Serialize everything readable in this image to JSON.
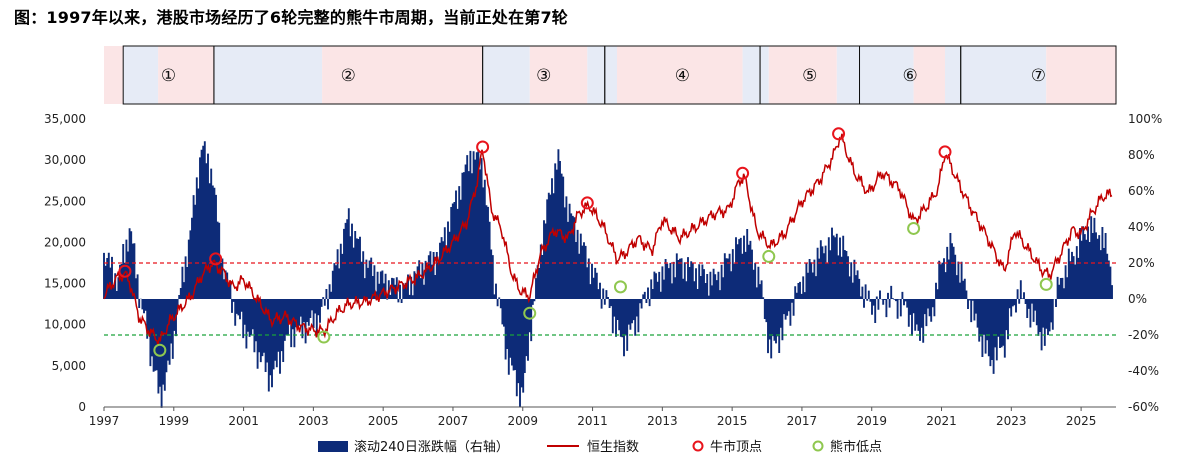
{
  "title": "图：1997年以来，港股市场经历了6轮完整的熊牛市周期，当前正处在第7轮",
  "colors": {
    "bar": "#0d2b78",
    "line": "#c00000",
    "bull_marker": "#e8141c",
    "bear_marker": "#8fc74f",
    "bull_band": "#fbe5e6",
    "bear_band": "#e6ebf6",
    "ref_red": "#e8141c",
    "ref_green": "#1aa23a"
  },
  "chart_data": {
    "type": "combo",
    "title": "",
    "xlim": [
      1997.0,
      2026.0
    ],
    "x_ticks": [
      "1997",
      "1999",
      "2001",
      "2003",
      "2005",
      "2007",
      "2009",
      "2011",
      "2013",
      "2015",
      "2017",
      "2019",
      "2021",
      "2023",
      "2025"
    ],
    "left_axis": {
      "label": "",
      "ylim": [
        0,
        35000
      ],
      "ticks": [
        "0",
        "5,000",
        "10,000",
        "15,000",
        "20,000",
        "25,000",
        "30,000",
        "35,000"
      ]
    },
    "right_axis": {
      "label": "",
      "ylim": [
        -60,
        100
      ],
      "ticks": [
        "-60%",
        "-40%",
        "-20%",
        "0%",
        "20%",
        "40%",
        "60%",
        "80%",
        "100%"
      ]
    },
    "phases": [
      {
        "label": "①",
        "start": 1997.55,
        "end": 2000.15
      },
      {
        "label": "②",
        "start": 2000.15,
        "end": 2007.85
      },
      {
        "label": "③",
        "start": 2007.85,
        "end": 2011.35
      },
      {
        "label": "④",
        "start": 2011.35,
        "end": 2015.8
      },
      {
        "label": "⑤",
        "start": 2015.8,
        "end": 2018.65
      },
      {
        "label": "⑥",
        "start": 2018.65,
        "end": 2021.55
      },
      {
        "label": "⑦",
        "start": 2021.55,
        "end": 2026.0
      }
    ],
    "bands": [
      {
        "kind": "bull",
        "start": 1997.0,
        "end": 1997.55
      },
      {
        "kind": "bear",
        "start": 1997.55,
        "end": 1998.55
      },
      {
        "kind": "bull",
        "start": 1998.55,
        "end": 2000.15
      },
      {
        "kind": "bear",
        "start": 2000.15,
        "end": 2003.25
      },
      {
        "kind": "bull",
        "start": 2003.25,
        "end": 2007.85
      },
      {
        "kind": "bear",
        "start": 2007.85,
        "end": 2009.2
      },
      {
        "kind": "bull",
        "start": 2009.2,
        "end": 2010.85
      },
      {
        "kind": "bear",
        "start": 2010.85,
        "end": 2011.7
      },
      {
        "kind": "bull",
        "start": 2011.7,
        "end": 2015.3
      },
      {
        "kind": "bear",
        "start": 2015.3,
        "end": 2016.05
      },
      {
        "kind": "bull",
        "start": 2016.05,
        "end": 2018.0
      },
      {
        "kind": "bear",
        "start": 2018.0,
        "end": 2020.2
      },
      {
        "kind": "bull",
        "start": 2020.2,
        "end": 2021.1
      },
      {
        "kind": "bear",
        "start": 2021.1,
        "end": 2024.0
      },
      {
        "kind": "bull",
        "start": 2024.0,
        "end": 2026.0
      }
    ],
    "reference_lines": [
      {
        "axis": "right",
        "value": 20,
        "color": "red"
      },
      {
        "axis": "right",
        "value": -20,
        "color": "green"
      }
    ],
    "series": [
      {
        "name": "滚动240日涨跌幅（右轴）",
        "type": "area",
        "axis": "right",
        "x": [
          1997.0,
          1997.4,
          1997.75,
          1998.0,
          1998.3,
          1998.6,
          1998.9,
          1999.2,
          1999.5,
          1999.8,
          2000.1,
          2000.4,
          2000.8,
          2001.3,
          2001.8,
          2002.3,
          2002.8,
          2003.2,
          2003.6,
          2004.0,
          2004.5,
          2005.0,
          2005.6,
          2006.0,
          2006.6,
          2007.0,
          2007.5,
          2007.85,
          2008.2,
          2008.6,
          2009.0,
          2009.2,
          2009.6,
          2010.0,
          2010.3,
          2010.7,
          2011.0,
          2011.5,
          2011.85,
          2012.2,
          2012.6,
          2013.0,
          2013.5,
          2014.0,
          2014.5,
          2015.0,
          2015.4,
          2015.8,
          2016.1,
          2016.5,
          2017.0,
          2017.5,
          2018.0,
          2018.5,
          2019.0,
          2019.5,
          2020.0,
          2020.3,
          2020.7,
          2021.0,
          2021.3,
          2021.7,
          2022.0,
          2022.4,
          2022.8,
          2023.2,
          2023.6,
          2024.0,
          2024.4,
          2024.8,
          2025.2,
          2025.6,
          2025.9
        ],
        "values": [
          25,
          10,
          40,
          5,
          -25,
          -55,
          -35,
          5,
          40,
          85,
          70,
          20,
          -10,
          -25,
          -45,
          -20,
          -15,
          -10,
          15,
          45,
          20,
          10,
          5,
          15,
          25,
          50,
          80,
          75,
          10,
          -35,
          -55,
          -20,
          40,
          80,
          50,
          30,
          15,
          -5,
          -25,
          -15,
          5,
          15,
          20,
          15,
          10,
          25,
          35,
          10,
          -30,
          -15,
          10,
          25,
          35,
          15,
          -5,
          0,
          -5,
          -20,
          -10,
          20,
          30,
          5,
          -15,
          -35,
          -25,
          5,
          -10,
          -25,
          10,
          25,
          40,
          35,
          15
        ]
      },
      {
        "name": "恒生指数",
        "type": "line",
        "axis": "left",
        "x": [
          1997.0,
          1997.2,
          1997.4,
          1997.6,
          1997.75,
          1998.0,
          1998.3,
          1998.6,
          1998.9,
          1999.2,
          1999.5,
          1999.8,
          2000.1,
          2000.4,
          2000.7,
          2001.0,
          2001.4,
          2001.8,
          2002.2,
          2002.6,
          2003.0,
          2003.3,
          2003.7,
          2004.0,
          2004.5,
          2005.0,
          2005.5,
          2006.0,
          2006.5,
          2007.0,
          2007.4,
          2007.7,
          2007.85,
          2008.1,
          2008.4,
          2008.7,
          2008.95,
          2009.2,
          2009.5,
          2009.9,
          2010.3,
          2010.6,
          2010.9,
          2011.3,
          2011.7,
          2011.9,
          2012.3,
          2012.7,
          2013.0,
          2013.5,
          2014.0,
          2014.5,
          2014.9,
          2015.2,
          2015.35,
          2015.7,
          2016.1,
          2016.5,
          2017.0,
          2017.5,
          2017.9,
          2018.1,
          2018.5,
          2018.9,
          2019.3,
          2019.8,
          2020.2,
          2020.6,
          2020.9,
          2021.1,
          2021.4,
          2021.8,
          2022.2,
          2022.5,
          2022.8,
          2023.1,
          2023.5,
          2023.9,
          2024.1,
          2024.4,
          2024.75,
          2025.0,
          2025.3,
          2025.6,
          2025.9
        ],
        "values": [
          13500,
          14800,
          15800,
          16200,
          15000,
          11000,
          9200,
          8000,
          10500,
          12000,
          13500,
          16000,
          17500,
          16500,
          14500,
          15500,
          13000,
          10500,
          11000,
          9800,
          9300,
          9200,
          11500,
          12500,
          12800,
          13800,
          14800,
          15800,
          17500,
          20000,
          22500,
          27500,
          31500,
          24000,
          21500,
          16000,
          14000,
          13500,
          18500,
          21500,
          20500,
          23500,
          24500,
          22000,
          18000,
          18500,
          20500,
          19000,
          22800,
          20500,
          22000,
          23500,
          24000,
          27500,
          28000,
          21500,
          19500,
          21000,
          25000,
          27500,
          30500,
          33000,
          28500,
          26000,
          28500,
          26500,
          22500,
          24500,
          26500,
          31000,
          28000,
          24500,
          21500,
          19000,
          16500,
          21500,
          19000,
          16500,
          16000,
          18500,
          21500,
          21000,
          23500,
          25500,
          26000
        ]
      }
    ],
    "bull_tops": [
      {
        "x": 1997.6,
        "y": 16500
      },
      {
        "x": 2000.2,
        "y": 18000
      },
      {
        "x": 2007.85,
        "y": 31600
      },
      {
        "x": 2010.85,
        "y": 24800
      },
      {
        "x": 2015.3,
        "y": 28400
      },
      {
        "x": 2018.05,
        "y": 33200
      },
      {
        "x": 2021.1,
        "y": 31000
      }
    ],
    "bear_bottoms": [
      {
        "x": 1998.6,
        "y": 6900
      },
      {
        "x": 2003.3,
        "y": 8500
      },
      {
        "x": 2009.2,
        "y": 11400
      },
      {
        "x": 2011.8,
        "y": 14600
      },
      {
        "x": 2016.05,
        "y": 18300
      },
      {
        "x": 2020.2,
        "y": 21700
      },
      {
        "x": 2024.0,
        "y": 14900
      }
    ],
    "legend": {
      "position": "bottom",
      "items": [
        {
          "label": "滚动240日涨跌幅（右轴）",
          "kind": "area"
        },
        {
          "label": "恒生指数",
          "kind": "line"
        },
        {
          "label": "牛市顶点",
          "kind": "bull"
        },
        {
          "label": "熊市低点",
          "kind": "bear"
        }
      ]
    }
  }
}
